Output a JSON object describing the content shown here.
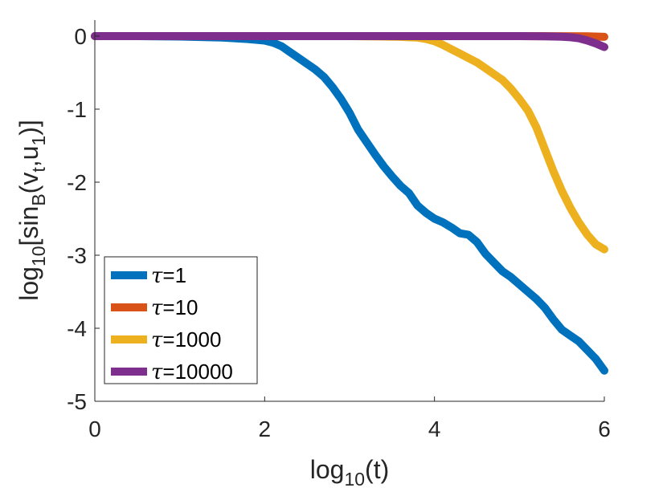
{
  "chart_data": {
    "type": "line",
    "title": "",
    "xlabel": {
      "base": "log",
      "sub": "10",
      "rest": "(t)"
    },
    "ylabel": {
      "base": "log",
      "sub1": "10",
      "mid": "[sin",
      "sub2": "B",
      "mid2": "(v",
      "sub3": "t",
      "mid3": ",u",
      "sub4": "1",
      "end": ")]"
    },
    "xlim": [
      0,
      6
    ],
    "ylim": [
      -5,
      0.1
    ],
    "xticks": [
      0,
      2,
      4,
      6
    ],
    "xtick_labels": [
      "0",
      "2",
      "4",
      "6"
    ],
    "yticks": [
      0,
      -1,
      -2,
      -3,
      -4,
      -5
    ],
    "ytick_labels": [
      "0",
      "-1",
      "-2",
      "-3",
      "-4",
      "-5"
    ],
    "grid": false,
    "legend_position": "bottom-left",
    "series": [
      {
        "name": "τ=1",
        "symbol": "τ",
        "value": "=1",
        "color": "#0072BD",
        "x": [
          0,
          0.5,
          1.0,
          1.5,
          1.8,
          2.0,
          2.1,
          2.2,
          2.3,
          2.4,
          2.5,
          2.6,
          2.7,
          2.8,
          2.9,
          3.0,
          3.1,
          3.2,
          3.3,
          3.4,
          3.5,
          3.6,
          3.7,
          3.8,
          3.9,
          4.0,
          4.1,
          4.2,
          4.3,
          4.4,
          4.5,
          4.6,
          4.7,
          4.8,
          4.9,
          5.0,
          5.1,
          5.2,
          5.3,
          5.4,
          5.5,
          5.6,
          5.7,
          5.8,
          5.9,
          6.0
        ],
        "values": [
          0,
          0,
          -0.005,
          -0.02,
          -0.04,
          -0.06,
          -0.09,
          -0.14,
          -0.22,
          -0.3,
          -0.38,
          -0.46,
          -0.56,
          -0.7,
          -0.86,
          -1.05,
          -1.28,
          -1.45,
          -1.62,
          -1.78,
          -1.92,
          -2.05,
          -2.15,
          -2.32,
          -2.42,
          -2.5,
          -2.55,
          -2.62,
          -2.7,
          -2.72,
          -2.82,
          -2.98,
          -3.1,
          -3.22,
          -3.3,
          -3.4,
          -3.5,
          -3.6,
          -3.72,
          -3.88,
          -4.02,
          -4.1,
          -4.18,
          -4.3,
          -4.42,
          -4.58
        ]
      },
      {
        "name": "τ=10",
        "symbol": "τ",
        "value": "=10",
        "color": "#D95319",
        "x": [
          0,
          1,
          2,
          3,
          4,
          5,
          5.5,
          5.8,
          6.0
        ],
        "values": [
          0,
          0,
          0,
          0,
          0,
          0,
          -0.001,
          -0.003,
          -0.01
        ]
      },
      {
        "name": "τ=1000",
        "symbol": "τ",
        "value": "=1000",
        "color": "#EDB120",
        "x": [
          0,
          1,
          2,
          3,
          3.4,
          3.6,
          3.8,
          3.9,
          4.0,
          4.1,
          4.2,
          4.3,
          4.4,
          4.5,
          4.6,
          4.7,
          4.8,
          4.9,
          5.0,
          5.1,
          5.2,
          5.3,
          5.4,
          5.5,
          5.6,
          5.7,
          5.8,
          5.9,
          6.0
        ],
        "values": [
          0,
          0,
          0,
          0,
          -0.005,
          -0.01,
          -0.02,
          -0.04,
          -0.07,
          -0.12,
          -0.18,
          -0.24,
          -0.3,
          -0.36,
          -0.44,
          -0.52,
          -0.6,
          -0.72,
          -0.86,
          -1.02,
          -1.25,
          -1.55,
          -1.85,
          -2.12,
          -2.35,
          -2.55,
          -2.72,
          -2.85,
          -2.92
        ]
      },
      {
        "name": "τ=10000",
        "symbol": "τ",
        "value": "=10000",
        "color": "#7E2F8E",
        "x": [
          0,
          1,
          2,
          3,
          4,
          5,
          5.3,
          5.5,
          5.6,
          5.7,
          5.8,
          5.9,
          6.0
        ],
        "values": [
          0,
          0,
          0,
          0,
          0,
          0,
          -0.003,
          -0.008,
          -0.015,
          -0.03,
          -0.06,
          -0.1,
          -0.15
        ]
      }
    ]
  }
}
